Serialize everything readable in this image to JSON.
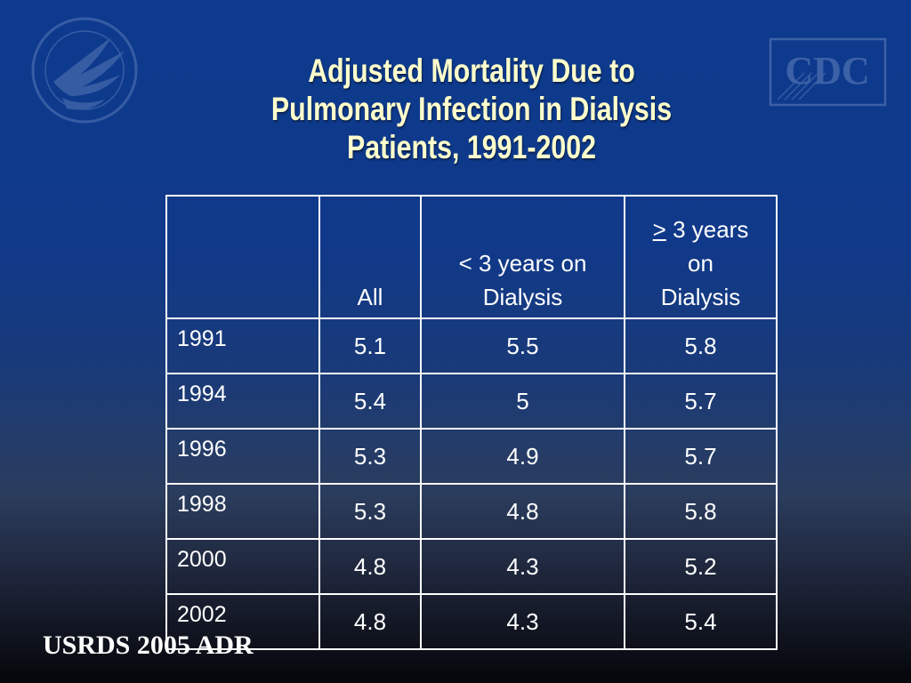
{
  "slide": {
    "title_lines": [
      "Adjusted Mortality Due to",
      "Pulmonary Infection in Dialysis",
      "Patients, 1991-2002"
    ],
    "source": "USRDS 2005 ADR",
    "logos": {
      "left": "hhs-eagle-icon",
      "right_text": "CDC"
    },
    "colors": {
      "title": "#ffffcc",
      "background_top": "#0d3a8e",
      "background_bottom": "#05060a",
      "table_lines": "#ffffff"
    }
  },
  "table": {
    "headers": [
      {
        "text": ""
      },
      {
        "text": "All"
      },
      {
        "line1": "< 3 years on",
        "line2": "Dialysis"
      },
      {
        "symbol": ">",
        "line1": " 3 years",
        "line2": "on",
        "line3": "Dialysis"
      }
    ],
    "rows": [
      {
        "year": "1991",
        "all": "5.1",
        "lt3": "5.5",
        "ge3": "5.8"
      },
      {
        "year": "1994",
        "all": "5.4",
        "lt3": "5",
        "ge3": "5.7"
      },
      {
        "year": "1996",
        "all": "5.3",
        "lt3": "4.9",
        "ge3": "5.7"
      },
      {
        "year": "1998",
        "all": "5.3",
        "lt3": "4.8",
        "ge3": "5.8"
      },
      {
        "year": "2000",
        "all": "4.8",
        "lt3": "4.3",
        "ge3": "5.2"
      },
      {
        "year": "2002",
        "all": "4.8",
        "lt3": "4.3",
        "ge3": "5.4"
      }
    ]
  }
}
